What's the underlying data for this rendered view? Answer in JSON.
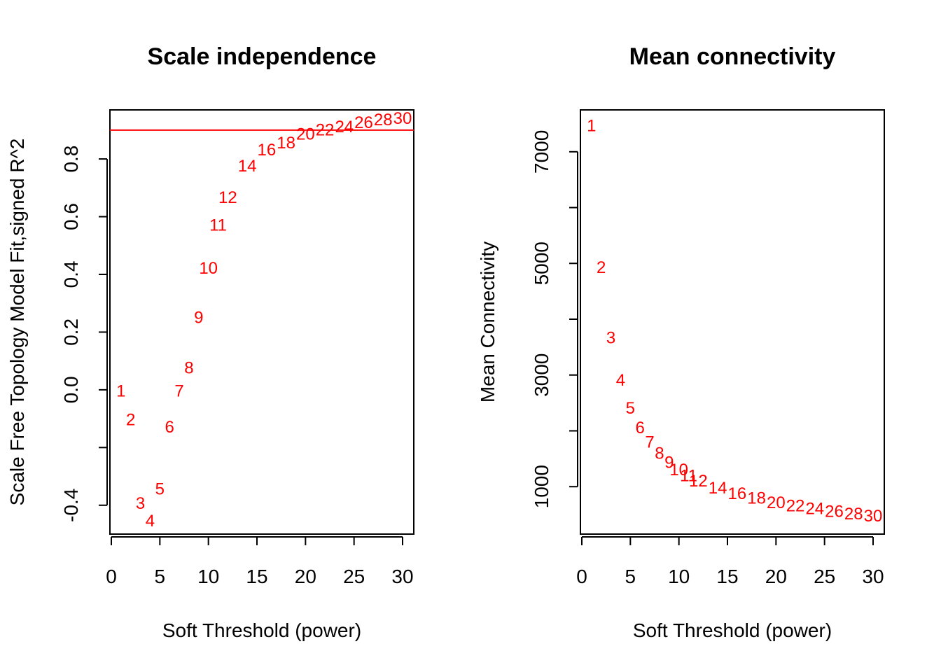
{
  "chart_data": [
    {
      "type": "scatter",
      "title": "Scale independence",
      "xlabel": "Soft Threshold (power)",
      "ylabel": "Scale Free Topology Model Fit,signed R^2",
      "xlim": [
        0,
        30
      ],
      "ylim": [
        -0.5,
        0.97
      ],
      "xticks": [
        0,
        5,
        10,
        15,
        20,
        25,
        30
      ],
      "yticks": [
        -0.4,
        -0.2,
        0.0,
        0.2,
        0.4,
        0.6,
        0.8
      ],
      "ytick_labels": [
        "-0.4",
        "",
        "0.0",
        "0.2",
        "0.4",
        "0.6",
        "0.8"
      ],
      "marker": "text-label",
      "point_color": "#ff0000",
      "hline": {
        "y": 0.9,
        "color": "#ff0000"
      },
      "x": [
        1,
        2,
        3,
        4,
        5,
        6,
        7,
        8,
        9,
        10,
        11,
        12,
        14,
        16,
        18,
        20,
        22,
        24,
        26,
        28,
        30
      ],
      "y": [
        -0.005,
        -0.105,
        -0.395,
        -0.455,
        -0.345,
        -0.13,
        -0.005,
        0.075,
        0.25,
        0.42,
        0.57,
        0.665,
        0.775,
        0.83,
        0.855,
        0.885,
        0.9,
        0.91,
        0.925,
        0.935,
        0.94
      ],
      "labels": [
        "1",
        "2",
        "3",
        "4",
        "5",
        "6",
        "7",
        "8",
        "9",
        "10",
        "11",
        "12",
        "14",
        "16",
        "18",
        "20",
        "22",
        "24",
        "26",
        "28",
        "30"
      ]
    },
    {
      "type": "scatter",
      "title": "Mean connectivity",
      "xlabel": "Soft Threshold (power)",
      "ylabel": "Mean Connectivity",
      "xlim": [
        0,
        30
      ],
      "ylim": [
        150,
        7750
      ],
      "xticks": [
        0,
        5,
        10,
        15,
        20,
        25,
        30
      ],
      "yticks": [
        1000,
        2000,
        3000,
        4000,
        5000,
        6000,
        7000
      ],
      "ytick_labels": [
        "1000",
        "",
        "3000",
        "",
        "5000",
        "",
        "7000"
      ],
      "marker": "text-label",
      "point_color": "#ff0000",
      "x": [
        1,
        2,
        3,
        4,
        5,
        6,
        7,
        8,
        9,
        10,
        11,
        12,
        14,
        16,
        18,
        20,
        22,
        24,
        26,
        28,
        30
      ],
      "y": [
        7460,
        4920,
        3660,
        2900,
        2400,
        2050,
        1790,
        1590,
        1430,
        1300,
        1190,
        1100,
        970,
        870,
        790,
        710,
        650,
        600,
        550,
        510,
        470
      ],
      "labels": [
        "1",
        "2",
        "3",
        "4",
        "5",
        "6",
        "7",
        "8",
        "9",
        "10",
        "11",
        "12",
        "14",
        "16",
        "18",
        "20",
        "22",
        "24",
        "26",
        "28",
        "30"
      ]
    }
  ]
}
